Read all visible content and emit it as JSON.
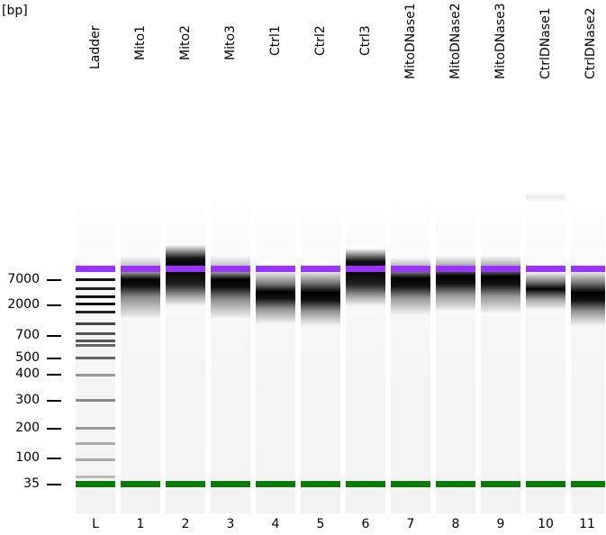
{
  "unit_label": "[bp]",
  "colors": {
    "upper_marker": "#9933ff",
    "lower_marker": "#0a7a0a",
    "band": "#000000",
    "background": "#ffffff"
  },
  "size_markers": [
    {
      "label": "7000"
    },
    {
      "label": "2000"
    },
    {
      "label": "700"
    },
    {
      "label": "500"
    },
    {
      "label": "400"
    },
    {
      "label": "300"
    },
    {
      "label": "200"
    },
    {
      "label": "100"
    },
    {
      "label": "35"
    }
  ],
  "lanes": [
    {
      "number": "L",
      "name": "Ladder"
    },
    {
      "number": "1",
      "name": "Mito1"
    },
    {
      "number": "2",
      "name": "Mito2"
    },
    {
      "number": "3",
      "name": "Mito3"
    },
    {
      "number": "4",
      "name": "Ctrl1"
    },
    {
      "number": "5",
      "name": "Ctrl2"
    },
    {
      "number": "6",
      "name": "Ctrl3"
    },
    {
      "number": "7",
      "name": "MitoDNase1"
    },
    {
      "number": "8",
      "name": "MitoDNase2"
    },
    {
      "number": "9",
      "name": "MitoDNase3"
    },
    {
      "number": "10",
      "name": "CtrlDNase1"
    },
    {
      "number": "11",
      "name": "CtrlDNase2"
    }
  ]
}
